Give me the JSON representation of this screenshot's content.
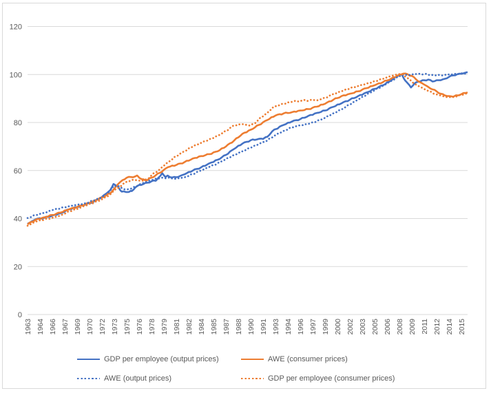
{
  "chart_data": {
    "type": "line",
    "title": "",
    "xlabel": "",
    "ylabel": "",
    "grid": "horizontal",
    "legend_position": "bottom",
    "y_axis": {
      "ticks": [
        0,
        20,
        40,
        60,
        80,
        100,
        120
      ],
      "range": [
        0,
        120
      ]
    },
    "x_axis": {
      "range": [
        1963,
        2016.25
      ],
      "tick_positions": [
        1963,
        1964.5,
        1966,
        1967.5,
        1969,
        1970.5,
        1972,
        1973.5,
        1975,
        1976.5,
        1978,
        1979.5,
        1981,
        1982.5,
        1984,
        1985.5,
        1987,
        1988.5,
        1990,
        1991.5,
        1993,
        1994.5,
        1996,
        1997.5,
        1999,
        2000.5,
        2002,
        2003.5,
        2005,
        2006.5,
        2008,
        2009.5,
        2011,
        2012.5,
        2014,
        2015.5
      ],
      "tick_labels": [
        "1963",
        "1964",
        "1966",
        "1967",
        "1969",
        "1970",
        "1972",
        "1973",
        "1975",
        "1976",
        "1978",
        "1979",
        "1981",
        "1982",
        "1984",
        "1985",
        "1987",
        "1988",
        "1990",
        "1991",
        "1993",
        "1994",
        "1996",
        "1997",
        "1999",
        "2000",
        "2002",
        "2003",
        "2005",
        "2006",
        "2008",
        "2009",
        "2011",
        "2012",
        "2014",
        "2015"
      ]
    },
    "series": [
      {
        "name": "GDP per employee (output prices)",
        "color": "#4472C4",
        "style": "solid",
        "points": [
          [
            1963,
            37.8
          ],
          [
            1963.5,
            38.8
          ],
          [
            1964,
            39.7
          ],
          [
            1965,
            40.3
          ],
          [
            1966,
            41.2
          ],
          [
            1967,
            42.2
          ],
          [
            1968,
            43.8
          ],
          [
            1969,
            44.8
          ],
          [
            1970,
            45.8
          ],
          [
            1971,
            47
          ],
          [
            1972,
            49
          ],
          [
            1972.5,
            50.3
          ],
          [
            1973,
            51.8
          ],
          [
            1973.4,
            54.4
          ],
          [
            1974,
            53
          ],
          [
            1974.4,
            51.2
          ],
          [
            1975,
            51
          ],
          [
            1975.6,
            51.4
          ],
          [
            1976,
            52.8
          ],
          [
            1976.5,
            54
          ],
          [
            1977,
            54.3
          ],
          [
            1977.5,
            54.9
          ],
          [
            1978,
            55.5
          ],
          [
            1978.6,
            56
          ],
          [
            1979,
            57.5
          ],
          [
            1979.3,
            58.9
          ],
          [
            1979.7,
            57.3
          ],
          [
            1980,
            57.8
          ],
          [
            1980.5,
            57.1
          ],
          [
            1981,
            57.2
          ],
          [
            1981.5,
            57.8
          ],
          [
            1982,
            58.4
          ],
          [
            1983,
            60
          ],
          [
            1984,
            61.3
          ],
          [
            1985,
            63
          ],
          [
            1986,
            64.5
          ],
          [
            1987,
            66.5
          ],
          [
            1988,
            69
          ],
          [
            1989,
            71.2
          ],
          [
            1990,
            72.6
          ],
          [
            1991,
            73.2
          ],
          [
            1991.6,
            73.4
          ],
          [
            1992,
            74
          ],
          [
            1992.6,
            76.3
          ],
          [
            1993,
            77.2
          ],
          [
            1994,
            79
          ],
          [
            1995,
            80.4
          ],
          [
            1996,
            81.4
          ],
          [
            1997,
            82.8
          ],
          [
            1998,
            84
          ],
          [
            1999,
            85
          ],
          [
            2000,
            86.5
          ],
          [
            2001,
            88
          ],
          [
            2002,
            89.5
          ],
          [
            2003,
            91
          ],
          [
            2004,
            92.5
          ],
          [
            2005,
            94
          ],
          [
            2006,
            95.5
          ],
          [
            2007,
            97.5
          ],
          [
            2007.9,
            99.7
          ],
          [
            2008.3,
            99.9
          ],
          [
            2008.7,
            97.5
          ],
          [
            2009.4,
            94.6
          ],
          [
            2009.8,
            96.2
          ],
          [
            2010.3,
            97
          ],
          [
            2011,
            97.6
          ],
          [
            2011.5,
            97.9
          ],
          [
            2012,
            97.1
          ],
          [
            2012.5,
            97.6
          ],
          [
            2013,
            97.6
          ],
          [
            2013.5,
            98.2
          ],
          [
            2014,
            99
          ],
          [
            2014.5,
            99.6
          ],
          [
            2015,
            100.1
          ],
          [
            2015.5,
            100.3
          ],
          [
            2016,
            100.8
          ],
          [
            2016.25,
            101
          ]
        ]
      },
      {
        "name": "AWE (consumer prices)",
        "color": "#ED7D31",
        "style": "solid",
        "points": [
          [
            1963,
            37.5
          ],
          [
            1963.5,
            38.6
          ],
          [
            1964,
            39.5
          ],
          [
            1965,
            40.5
          ],
          [
            1966,
            41.5
          ],
          [
            1967,
            42.5
          ],
          [
            1968,
            43.8
          ],
          [
            1969,
            44.8
          ],
          [
            1970,
            46
          ],
          [
            1971,
            47.3
          ],
          [
            1972,
            48.8
          ],
          [
            1973,
            50.5
          ],
          [
            1973.5,
            52.5
          ],
          [
            1974,
            54.5
          ],
          [
            1974.5,
            56
          ],
          [
            1975,
            57
          ],
          [
            1975.5,
            57.3
          ],
          [
            1976,
            57.5
          ],
          [
            1976.3,
            57.8
          ],
          [
            1976.8,
            56.4
          ],
          [
            1977.3,
            55.8
          ],
          [
            1978,
            57
          ],
          [
            1979,
            59
          ],
          [
            1979.5,
            60.3
          ],
          [
            1980,
            61.4
          ],
          [
            1981,
            62.3
          ],
          [
            1982,
            63.5
          ],
          [
            1983,
            65
          ],
          [
            1984,
            66
          ],
          [
            1985,
            66.8
          ],
          [
            1986,
            68
          ],
          [
            1987,
            70
          ],
          [
            1988,
            72.5
          ],
          [
            1989,
            75.3
          ],
          [
            1990,
            77
          ],
          [
            1991,
            79
          ],
          [
            1992,
            81
          ],
          [
            1993,
            82.9
          ],
          [
            1994,
            83.8
          ],
          [
            1995,
            84.3
          ],
          [
            1996,
            85
          ],
          [
            1997,
            85.6
          ],
          [
            1998,
            86.6
          ],
          [
            1999,
            87.8
          ],
          [
            2000,
            89.5
          ],
          [
            2001,
            91
          ],
          [
            2002,
            92
          ],
          [
            2003,
            93
          ],
          [
            2004,
            94.3
          ],
          [
            2005,
            95.5
          ],
          [
            2006,
            96.8
          ],
          [
            2007,
            98.3
          ],
          [
            2008,
            99.9
          ],
          [
            2008.5,
            100.4
          ],
          [
            2009,
            100.1
          ],
          [
            2009.5,
            99.4
          ],
          [
            2010,
            98
          ],
          [
            2010.5,
            96.8
          ],
          [
            2011,
            95.8
          ],
          [
            2011.5,
            94.8
          ],
          [
            2012,
            93.8
          ],
          [
            2012.5,
            93
          ],
          [
            2013,
            92
          ],
          [
            2013.5,
            91.3
          ],
          [
            2014,
            91
          ],
          [
            2014.6,
            90.9
          ],
          [
            2015,
            91.3
          ],
          [
            2015.5,
            91.8
          ],
          [
            2016,
            92.3
          ],
          [
            2016.25,
            92.5
          ]
        ]
      },
      {
        "name": "AWE (output prices)",
        "color": "#4472C4",
        "style": "dotted",
        "points": [
          [
            1963,
            40.2
          ],
          [
            1964,
            41.5
          ],
          [
            1965,
            42.3
          ],
          [
            1966,
            43.5
          ],
          [
            1967,
            44.3
          ],
          [
            1968,
            45.1
          ],
          [
            1969,
            45.8
          ],
          [
            1970,
            46.3
          ],
          [
            1971,
            47.5
          ],
          [
            1972,
            48.8
          ],
          [
            1973,
            51.5
          ],
          [
            1973.5,
            53.8
          ],
          [
            1974,
            53.5
          ],
          [
            1974.5,
            52.4
          ],
          [
            1975,
            52.1
          ],
          [
            1975.5,
            52.4
          ],
          [
            1976,
            53.3
          ],
          [
            1977,
            54.8
          ],
          [
            1978,
            56
          ],
          [
            1979,
            56.8
          ],
          [
            1980,
            57
          ],
          [
            1981,
            56.6
          ],
          [
            1982,
            57.2
          ],
          [
            1983,
            58.5
          ],
          [
            1984,
            60
          ],
          [
            1985,
            61.5
          ],
          [
            1986,
            63
          ],
          [
            1987,
            64.8
          ],
          [
            1988,
            66.5
          ],
          [
            1989,
            68
          ],
          [
            1990,
            69.5
          ],
          [
            1991,
            71
          ],
          [
            1992,
            72.5
          ],
          [
            1993,
            74.8
          ],
          [
            1994,
            76.5
          ],
          [
            1995,
            78
          ],
          [
            1996,
            78.8
          ],
          [
            1997,
            79.4
          ],
          [
            1998,
            80.5
          ],
          [
            1999,
            82
          ],
          [
            2000,
            83.8
          ],
          [
            2001,
            85.5
          ],
          [
            2002,
            87.5
          ],
          [
            2003,
            89.5
          ],
          [
            2004,
            91.5
          ],
          [
            2005,
            93.5
          ],
          [
            2006,
            95.3
          ],
          [
            2007,
            97.3
          ],
          [
            2008,
            99.3
          ],
          [
            2008.5,
            100
          ],
          [
            2009,
            99.7
          ],
          [
            2010,
            100.2
          ],
          [
            2011,
            100.2
          ],
          [
            2012,
            99.8
          ],
          [
            2013,
            99.7
          ],
          [
            2014,
            100
          ],
          [
            2015,
            100.2
          ],
          [
            2016,
            100.4
          ],
          [
            2016.25,
            100.5
          ]
        ]
      },
      {
        "name": "GDP per employee (consumer prices)",
        "color": "#ED7D31",
        "style": "dotted",
        "points": [
          [
            1963,
            37
          ],
          [
            1964,
            38.7
          ],
          [
            1965,
            39.5
          ],
          [
            1966,
            40.3
          ],
          [
            1967,
            41.3
          ],
          [
            1968,
            43
          ],
          [
            1969,
            44
          ],
          [
            1970,
            45.3
          ],
          [
            1971,
            46.5
          ],
          [
            1972,
            48
          ],
          [
            1973,
            50
          ],
          [
            1973.5,
            51.8
          ],
          [
            1974,
            52.8
          ],
          [
            1974.5,
            54.2
          ],
          [
            1975,
            55.3
          ],
          [
            1975.5,
            55.9
          ],
          [
            1976,
            56.1
          ],
          [
            1976.5,
            55.8
          ],
          [
            1977,
            55.8
          ],
          [
            1977.5,
            56.4
          ],
          [
            1978,
            58
          ],
          [
            1979,
            60.5
          ],
          [
            1979.5,
            62
          ],
          [
            1980,
            63.5
          ],
          [
            1981,
            66
          ],
          [
            1982,
            68
          ],
          [
            1983,
            70
          ],
          [
            1984,
            71.5
          ],
          [
            1985,
            73
          ],
          [
            1986,
            74.5
          ],
          [
            1987,
            76.5
          ],
          [
            1988,
            78.8
          ],
          [
            1989,
            79.3
          ],
          [
            1989.5,
            79
          ],
          [
            1990,
            78.8
          ],
          [
            1990.5,
            79.6
          ],
          [
            1991,
            81.5
          ],
          [
            1992,
            84
          ],
          [
            1992.6,
            86
          ],
          [
            1993,
            86.8
          ],
          [
            1994,
            87.8
          ],
          [
            1995,
            88.6
          ],
          [
            1995.5,
            89.1
          ],
          [
            1996,
            88.8
          ],
          [
            1996.5,
            89.4
          ],
          [
            1997,
            89
          ],
          [
            1997.5,
            89.5
          ],
          [
            1998,
            89.2
          ],
          [
            1998.5,
            89.7
          ],
          [
            1999,
            90.3
          ],
          [
            2000,
            91.8
          ],
          [
            2001,
            93
          ],
          [
            2002,
            94.2
          ],
          [
            2003,
            95.2
          ],
          [
            2004,
            96.2
          ],
          [
            2005,
            97.2
          ],
          [
            2006,
            98.2
          ],
          [
            2007,
            99.3
          ],
          [
            2007.5,
            99.9
          ],
          [
            2008,
            100.2
          ],
          [
            2008.5,
            99.9
          ],
          [
            2009,
            98.5
          ],
          [
            2009.5,
            97
          ],
          [
            2010,
            95.8
          ],
          [
            2010.5,
            94.8
          ],
          [
            2011,
            94
          ],
          [
            2011.5,
            93.2
          ],
          [
            2012,
            92.3
          ],
          [
            2012.5,
            91.7
          ],
          [
            2013,
            91.2
          ],
          [
            2013.5,
            90.8
          ],
          [
            2014,
            90.5
          ],
          [
            2014.5,
            90.6
          ],
          [
            2015,
            91
          ],
          [
            2015.5,
            91.5
          ],
          [
            2016,
            92
          ],
          [
            2016.25,
            92.2
          ]
        ]
      }
    ],
    "colors": {
      "gridline": "#D9D9D9",
      "axis_line": "#D9D9D9",
      "tick_label": "#595959",
      "legend_text": "#595959",
      "chart_border": "#D9D9D9",
      "background": "#FFFFFF"
    }
  }
}
